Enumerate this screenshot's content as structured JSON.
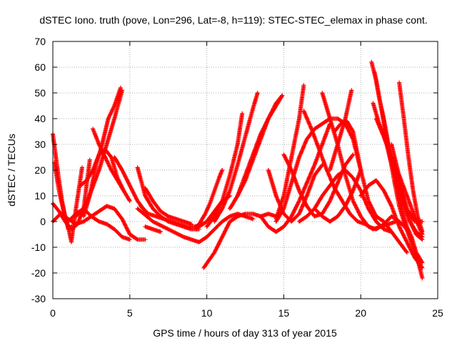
{
  "chart_data": {
    "type": "scatter",
    "title": "dSTEC Iono. truth (pove, Lon=296, Lat=-8, h=119): STEC-STEC_elemax in phase cont.",
    "xlabel": "GPS time / hours of day 313 of year 2015",
    "ylabel": "dSTEC  / TECUs",
    "xlim": [
      0,
      25
    ],
    "ylim": [
      -30,
      70
    ],
    "xticks": [
      "0",
      "5",
      "10",
      "15",
      "20",
      "25"
    ],
    "yticks": [
      "-30",
      "-20",
      "-10",
      "0",
      "10",
      "20",
      "30",
      "40",
      "50",
      "60",
      "70"
    ],
    "grid": true,
    "marker": "plus",
    "color": "#ff0000",
    "series": [
      {
        "x": [
          0.0,
          0.2,
          0.4,
          0.6,
          0.8,
          1.0,
          1.2
        ],
        "y": [
          34,
          25,
          16,
          8,
          2,
          -3,
          -2
        ]
      },
      {
        "x": [
          0.1,
          0.4,
          0.7,
          1.0,
          1.2,
          1.5,
          1.9
        ],
        "y": [
          23,
          12,
          4,
          -2,
          -8,
          5,
          21
        ]
      },
      {
        "x": [
          0.0,
          0.4,
          0.8,
          1.2,
          1.6,
          2.0,
          2.4
        ],
        "y": [
          7,
          4,
          0,
          -3,
          -1,
          5,
          24
        ]
      },
      {
        "x": [
          0.0,
          0.5,
          1.0,
          1.5,
          2.0,
          2.5,
          3.0,
          3.5,
          4.0,
          4.5,
          5.0,
          5.5,
          6.0
        ],
        "y": [
          0,
          3,
          1,
          -1,
          0,
          2,
          4,
          6,
          5,
          1,
          -5,
          -7,
          -7
        ]
      },
      {
        "x": [
          1.0,
          1.5,
          2.0,
          2.5,
          3.0,
          3.5,
          4.0,
          4.5,
          5.0
        ],
        "y": [
          0,
          3,
          5,
          2,
          0,
          -1,
          -3,
          -6,
          -7
        ]
      },
      {
        "x": [
          1.8,
          2.2,
          2.6,
          3.0,
          3.4,
          3.8,
          4.2,
          4.6
        ],
        "y": [
          14,
          16,
          20,
          26,
          28,
          25,
          17,
          12
        ]
      },
      {
        "x": [
          2.6,
          3.0,
          3.4,
          3.8,
          4.2,
          4.6,
          5.0
        ],
        "y": [
          36,
          30,
          25,
          20,
          16,
          12,
          8
        ]
      },
      {
        "x": [
          2.0,
          2.4,
          2.8,
          3.2,
          3.6,
          4.0,
          4.4
        ],
        "y": [
          2,
          10,
          22,
          30,
          40,
          45,
          52
        ]
      },
      {
        "x": [
          1.5,
          2.0,
          2.5,
          3.0,
          3.5,
          4.0,
          4.5
        ],
        "y": [
          2,
          5,
          12,
          20,
          30,
          40,
          51
        ]
      },
      {
        "x": [
          4.0,
          4.5,
          5.0,
          5.5,
          6.0
        ],
        "y": [
          25,
          20,
          14,
          8,
          4
        ]
      },
      {
        "x": [
          5.5,
          6.0,
          6.5,
          7.0,
          7.5,
          8.0,
          8.5,
          9.0,
          9.5
        ],
        "y": [
          21,
          10,
          5,
          2,
          0,
          -1,
          -2,
          -3,
          -3
        ]
      },
      {
        "x": [
          6.0,
          6.5,
          7.0,
          7.5,
          8.0,
          8.5,
          9.0
        ],
        "y": [
          13,
          8,
          4,
          2,
          1,
          0,
          -1
        ]
      },
      {
        "x": [
          5.7,
          6.2,
          6.7,
          7.2,
          7.7,
          8.2,
          8.7,
          9.2,
          9.7
        ],
        "y": [
          6,
          3,
          2,
          1,
          0,
          -1,
          -2,
          -2,
          -1
        ]
      },
      {
        "x": [
          6.0,
          6.5,
          7.0
        ],
        "y": [
          -2,
          -3,
          -4
        ]
      },
      {
        "x": [
          5.5,
          6.5,
          7.5,
          8.5,
          9.0,
          9.5,
          10.0,
          10.5,
          11.0,
          11.5,
          12.0,
          12.5,
          13.0
        ],
        "y": [
          5,
          0,
          -3,
          -6,
          -7,
          -8,
          -6,
          -3,
          0,
          2,
          3,
          2,
          1
        ]
      },
      {
        "x": [
          9.3,
          9.6,
          9.9,
          10.2,
          10.5,
          10.8,
          11.0
        ],
        "y": [
          -3,
          0,
          3,
          7,
          12,
          17,
          20
        ]
      },
      {
        "x": [
          9.5,
          10.0,
          10.5,
          11.0,
          11.5
        ],
        "y": [
          -2,
          0,
          4,
          8,
          10
        ]
      },
      {
        "x": [
          9.8,
          10.5,
          11.0,
          11.5,
          12.0,
          12.5,
          13.0,
          13.5,
          14.0,
          14.5
        ],
        "y": [
          -18,
          -12,
          -6,
          0,
          2,
          3,
          3,
          2,
          3,
          2
        ]
      },
      {
        "x": [
          10.0,
          10.5,
          11.0,
          11.5,
          12.0,
          12.3
        ],
        "y": [
          -2,
          2,
          8,
          18,
          30,
          42
        ]
      },
      {
        "x": [
          10.5,
          11.0,
          11.5,
          12.0,
          12.5,
          13.0,
          13.3
        ],
        "y": [
          0,
          5,
          12,
          22,
          33,
          44,
          50
        ]
      },
      {
        "x": [
          11.5,
          12.0,
          12.5,
          13.0,
          13.5,
          14.0,
          14.5,
          14.9
        ],
        "y": [
          5,
          10,
          18,
          26,
          34,
          40,
          45,
          49
        ]
      },
      {
        "x": [
          12.0,
          12.5,
          13.0,
          13.5,
          14.0,
          14.5,
          14.9
        ],
        "y": [
          10,
          16,
          24,
          32,
          40,
          46,
          49
        ]
      },
      {
        "x": [
          14.0,
          14.5,
          15.0,
          15.5,
          16.0,
          16.5,
          17.0,
          17.5
        ],
        "y": [
          20,
          10,
          3,
          0,
          3,
          10,
          18,
          22
        ]
      },
      {
        "x": [
          14.5,
          15.0,
          15.5,
          16.0,
          16.5,
          17.0,
          17.5,
          18.0,
          18.5,
          19.0,
          19.5,
          20.0
        ],
        "y": [
          0,
          5,
          15,
          25,
          32,
          36,
          38,
          40,
          40,
          38,
          32,
          20
        ]
      },
      {
        "x": [
          15.0,
          15.5,
          16.0,
          16.5,
          17.0,
          17.5,
          18.0,
          18.5,
          19.0,
          19.5
        ],
        "y": [
          26,
          20,
          12,
          6,
          2,
          3,
          8,
          15,
          22,
          26
        ]
      },
      {
        "x": [
          13.5,
          14.0,
          14.5,
          15.0,
          15.5,
          16.0,
          16.5,
          17.0,
          17.5,
          18.0
        ],
        "y": [
          2,
          -2,
          -4,
          -2,
          2,
          8,
          15,
          22,
          30,
          38
        ]
      },
      {
        "x": [
          14.5,
          15.0,
          15.5,
          16.0,
          16.3
        ],
        "y": [
          1,
          10,
          25,
          40,
          53
        ]
      },
      {
        "x": [
          16.3,
          16.8,
          17.3,
          17.8,
          18.3,
          18.8,
          19.3,
          19.8,
          20.3,
          20.8,
          21.3,
          21.8,
          22.3
        ],
        "y": [
          43,
          36,
          28,
          20,
          13,
          8,
          3,
          0,
          -1,
          -3,
          -2,
          -1,
          0
        ]
      },
      {
        "x": [
          16.0,
          16.5,
          17.0,
          17.5,
          18.0,
          18.5,
          19.0,
          19.5,
          20.0,
          20.5,
          21.0,
          21.5,
          22.0
        ],
        "y": [
          0,
          2,
          5,
          10,
          14,
          18,
          20,
          17,
          12,
          5,
          0,
          -3,
          -4
        ]
      },
      {
        "x": [
          17.5,
          18.0,
          18.5,
          19.0,
          19.5,
          20.0,
          20.5,
          21.0,
          21.5,
          22.0,
          22.5,
          23.0
        ],
        "y": [
          50,
          40,
          30,
          18,
          8,
          2,
          -2,
          -3,
          -1,
          2,
          0,
          -3
        ]
      },
      {
        "x": [
          18.0,
          18.5,
          19.0,
          19.4
        ],
        "y": [
          20,
          30,
          40,
          51
        ]
      },
      {
        "x": [
          18.3,
          18.7,
          19.1,
          19.5,
          20.0,
          20.5,
          21.0,
          21.5,
          22.0,
          22.5,
          23.0
        ],
        "y": [
          35,
          38,
          39,
          35,
          20,
          8,
          2,
          0,
          -4,
          -8,
          -12
        ]
      },
      {
        "x": [
          17.0,
          17.5,
          18.0,
          18.5,
          19.0,
          19.5,
          20.0
        ],
        "y": [
          5,
          2,
          0,
          2,
          6,
          12,
          20
        ]
      },
      {
        "x": [
          20.7,
          21.0,
          21.3,
          21.6,
          21.9,
          22.2,
          22.5,
          22.8,
          23.1,
          23.4,
          23.7,
          24.0
        ],
        "y": [
          62,
          55,
          45,
          35,
          25,
          15,
          6,
          0,
          -5,
          -10,
          -15,
          -22
        ]
      },
      {
        "x": [
          20.9,
          21.2,
          21.5,
          21.8,
          22.1,
          22.4,
          22.7,
          23.0,
          23.3,
          23.6,
          24.0
        ],
        "y": [
          58,
          48,
          40,
          30,
          22,
          12,
          4,
          -2,
          -6,
          -12,
          -16
        ]
      },
      {
        "x": [
          20.8,
          21.2,
          21.6,
          22.0,
          22.4,
          22.8,
          23.2,
          23.6,
          24.0
        ],
        "y": [
          46,
          38,
          32,
          22,
          14,
          6,
          0,
          -5,
          -7
        ]
      },
      {
        "x": [
          21.0,
          21.5,
          22.0,
          22.5,
          23.0,
          23.5,
          24.0
        ],
        "y": [
          40,
          33,
          25,
          18,
          10,
          2,
          -5
        ]
      },
      {
        "x": [
          22.5,
          22.8,
          23.1,
          23.4,
          23.7,
          24.0
        ],
        "y": [
          54,
          40,
          25,
          12,
          2,
          -4
        ]
      },
      {
        "x": [
          21.5,
          22.0,
          22.5,
          23.0,
          23.5,
          24.0
        ],
        "y": [
          33,
          25,
          15,
          5,
          0,
          0
        ]
      },
      {
        "x": [
          22.0,
          22.4,
          22.8,
          23.2,
          23.6,
          24.0
        ],
        "y": [
          30,
          20,
          8,
          0,
          -4,
          -6
        ]
      },
      {
        "x": [
          20.0,
          20.5,
          21.0,
          21.5,
          22.0,
          22.5,
          23.0,
          23.5,
          24.0
        ],
        "y": [
          10,
          14,
          16,
          12,
          6,
          -2,
          -8,
          -14,
          -18
        ]
      }
    ]
  }
}
